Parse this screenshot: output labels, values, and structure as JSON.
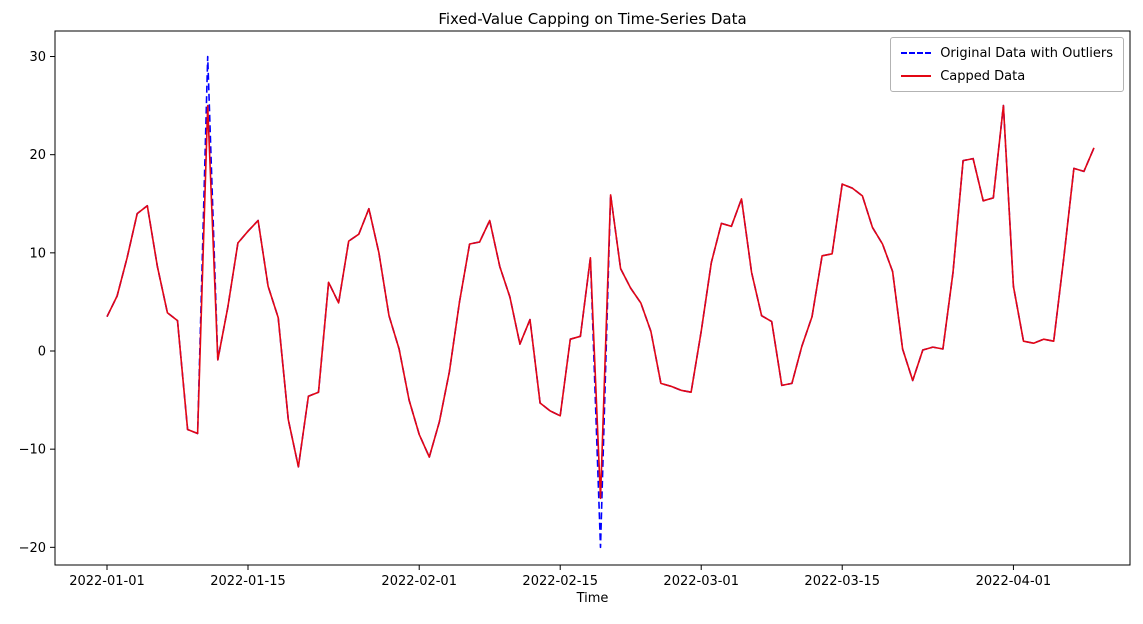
{
  "figure": {
    "title": "Fixed-Value Capping on Time-Series Data",
    "xlabel": "Time",
    "background": "#ffffff"
  },
  "legend": {
    "position": "upper right",
    "items": [
      {
        "label": "Original Data with Outliers",
        "color": "#0000ff",
        "dashed": true
      },
      {
        "label": "Capped Data",
        "color": "#e30613",
        "dashed": false
      }
    ]
  },
  "chart_data": {
    "type": "line",
    "title": "Fixed-Value Capping on Time-Series Data",
    "xlabel": "Time",
    "ylabel": "",
    "grid": false,
    "legend_position": "upper right",
    "ylim": [
      -21.8,
      32.6
    ],
    "y_ticks": [
      30,
      20,
      10,
      0,
      -10,
      -20
    ],
    "x_tick_labels": [
      "2022-01-01",
      "2022-01-15",
      "2022-02-01",
      "2022-02-15",
      "2022-03-01",
      "2022-03-15",
      "2022-04-01"
    ],
    "cap_upper": 25,
    "cap_lower": -15,
    "x": [
      "2022-01-01",
      "2022-01-02",
      "2022-01-03",
      "2022-01-04",
      "2022-01-05",
      "2022-01-06",
      "2022-01-07",
      "2022-01-08",
      "2022-01-09",
      "2022-01-10",
      "2022-01-11",
      "2022-01-12",
      "2022-01-13",
      "2022-01-14",
      "2022-01-15",
      "2022-01-16",
      "2022-01-17",
      "2022-01-18",
      "2022-01-19",
      "2022-01-20",
      "2022-01-21",
      "2022-01-22",
      "2022-01-23",
      "2022-01-24",
      "2022-01-25",
      "2022-01-26",
      "2022-01-27",
      "2022-01-28",
      "2022-01-29",
      "2022-01-30",
      "2022-01-31",
      "2022-02-01",
      "2022-02-02",
      "2022-02-03",
      "2022-02-04",
      "2022-02-05",
      "2022-02-06",
      "2022-02-07",
      "2022-02-08",
      "2022-02-09",
      "2022-02-10",
      "2022-02-11",
      "2022-02-12",
      "2022-02-13",
      "2022-02-14",
      "2022-02-15",
      "2022-02-16",
      "2022-02-17",
      "2022-02-18",
      "2022-02-19",
      "2022-02-20",
      "2022-02-21",
      "2022-02-22",
      "2022-02-23",
      "2022-02-24",
      "2022-02-25",
      "2022-02-26",
      "2022-02-27",
      "2022-02-28",
      "2022-03-01",
      "2022-03-02",
      "2022-03-03",
      "2022-03-04",
      "2022-03-05",
      "2022-03-06",
      "2022-03-07",
      "2022-03-08",
      "2022-03-09",
      "2022-03-10",
      "2022-03-11",
      "2022-03-12",
      "2022-03-13",
      "2022-03-14",
      "2022-03-15",
      "2022-03-16",
      "2022-03-17",
      "2022-03-18",
      "2022-03-19",
      "2022-03-20",
      "2022-03-21",
      "2022-03-22",
      "2022-03-23",
      "2022-03-24",
      "2022-03-25",
      "2022-03-26",
      "2022-03-27",
      "2022-03-28",
      "2022-03-29",
      "2022-03-30",
      "2022-03-31",
      "2022-04-01",
      "2022-04-02",
      "2022-04-03",
      "2022-04-04",
      "2022-04-05",
      "2022-04-06",
      "2022-04-07",
      "2022-04-08",
      "2022-04-09"
    ],
    "series": [
      {
        "name": "Original Data with Outliers",
        "color": "#0000ff",
        "style": "dashed",
        "values": [
          3.5,
          5.6,
          9.5,
          14.0,
          14.8,
          8.6,
          3.9,
          3.1,
          -8.0,
          -8.4,
          30.0,
          -0.9,
          4.5,
          11.0,
          12.2,
          13.3,
          6.6,
          3.4,
          -7.0,
          -11.8,
          -4.6,
          -4.2,
          7.0,
          4.9,
          11.2,
          11.9,
          14.5,
          10.0,
          3.6,
          0.2,
          -5.0,
          -8.5,
          -10.8,
          -7.2,
          -2.1,
          5.0,
          10.9,
          11.1,
          13.3,
          8.6,
          5.5,
          0.7,
          3.2,
          -5.3,
          -6.1,
          -6.6,
          1.2,
          1.5,
          9.5,
          -20.0,
          15.9,
          8.4,
          6.4,
          4.9,
          2.0,
          -3.3,
          -3.6,
          -4.0,
          -4.2,
          2.0,
          9.0,
          13.0,
          12.7,
          15.5,
          8.0,
          3.6,
          3.0,
          -3.5,
          -3.3,
          0.5,
          3.5,
          9.7,
          9.9,
          17.0,
          16.6,
          15.8,
          12.6,
          10.9,
          8.1,
          0.2,
          -3.0,
          0.1,
          0.4,
          0.2,
          8.0,
          19.4,
          19.6,
          15.3,
          15.6,
          25.0,
          6.6,
          1.0,
          0.8,
          1.2,
          1.0,
          9.5,
          18.6,
          18.3,
          20.7
        ]
      },
      {
        "name": "Capped Data",
        "color": "#e30613",
        "style": "solid",
        "values": [
          3.5,
          5.6,
          9.5,
          14.0,
          14.8,
          8.6,
          3.9,
          3.1,
          -8.0,
          -8.4,
          25.0,
          -0.9,
          4.5,
          11.0,
          12.2,
          13.3,
          6.6,
          3.4,
          -7.0,
          -11.8,
          -4.6,
          -4.2,
          7.0,
          4.9,
          11.2,
          11.9,
          14.5,
          10.0,
          3.6,
          0.2,
          -5.0,
          -8.5,
          -10.8,
          -7.2,
          -2.1,
          5.0,
          10.9,
          11.1,
          13.3,
          8.6,
          5.5,
          0.7,
          3.2,
          -5.3,
          -6.1,
          -6.6,
          1.2,
          1.5,
          9.5,
          -15.0,
          15.9,
          8.4,
          6.4,
          4.9,
          2.0,
          -3.3,
          -3.6,
          -4.0,
          -4.2,
          2.0,
          9.0,
          13.0,
          12.7,
          15.5,
          8.0,
          3.6,
          3.0,
          -3.5,
          -3.3,
          0.5,
          3.5,
          9.7,
          9.9,
          17.0,
          16.6,
          15.8,
          12.6,
          10.9,
          8.1,
          0.2,
          -3.0,
          0.1,
          0.4,
          0.2,
          8.0,
          19.4,
          19.6,
          15.3,
          15.6,
          25.0,
          6.6,
          1.0,
          0.8,
          1.2,
          1.0,
          9.5,
          18.6,
          18.3,
          20.7
        ]
      }
    ]
  }
}
